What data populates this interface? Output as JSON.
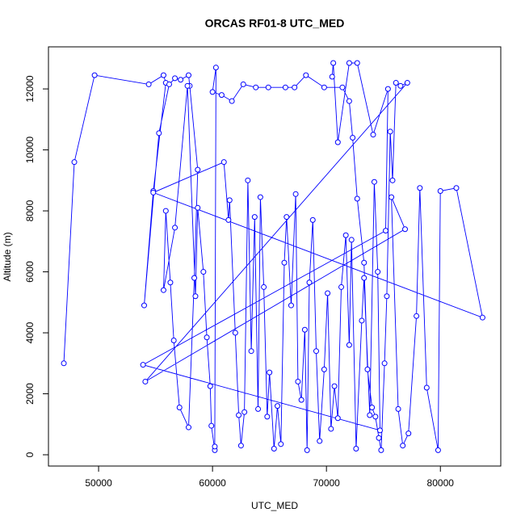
{
  "chart_data": {
    "type": "line",
    "title": "ORCAS RF01-8 UTC_MED",
    "x_label": "UTC_MED",
    "y_label": "Altitude (m)",
    "color": "#0000ff",
    "markers": true,
    "x": [
      46950,
      47870,
      49650,
      54400,
      55700,
      55900,
      54800,
      54000,
      55300,
      56200,
      56700,
      57200,
      57900,
      58000,
      58700,
      58400,
      57900,
      57100,
      56600,
      56300,
      55900,
      55700,
      56700,
      57800,
      58500,
      58700,
      59200,
      59500,
      59800,
      59900,
      60200,
      60200,
      60300,
      60000,
      60800,
      61700,
      62700,
      63800,
      64900,
      66400,
      67200,
      68200,
      69800,
      71400,
      72000,
      72300,
      72700,
      73300,
      73600,
      74000,
      74300,
      74600,
      74800,
      75100,
      75300,
      75600,
      75800,
      76100,
      76500,
      77100,
      54100,
      76900,
      75700,
      76300,
      76700,
      77200,
      77900,
      78200,
      78800,
      79800,
      80000,
      81400,
      83700,
      54800,
      61000,
      61400,
      61500,
      62000,
      62300,
      62500,
      62800,
      63100,
      63400,
      63700,
      64000,
      64200,
      64500,
      64800,
      65000,
      65400,
      65700,
      66000,
      66300,
      66500,
      66900,
      67300,
      67500,
      67800,
      68100,
      68300,
      68500,
      68800,
      69100,
      69400,
      69800,
      70100,
      70400,
      70700,
      71000,
      71300,
      71700,
      72000,
      72200,
      72600,
      73100,
      73300,
      73800,
      74200,
      74500,
      74700,
      53900,
      75200,
      75400,
      74100,
      72700,
      72000,
      71000,
      70600,
      70500
    ],
    "values": [
      3000,
      9600,
      12450,
      12150,
      12450,
      12200,
      8650,
      4900,
      10550,
      12150,
      12350,
      12300,
      12450,
      12100,
      9350,
      5800,
      900,
      1550,
      3750,
      5650,
      8000,
      5400,
      7450,
      12100,
      5200,
      8100,
      6000,
      3850,
      2250,
      950,
      150,
      270,
      12700,
      11900,
      11800,
      11600,
      12150,
      12050,
      12050,
      12050,
      12050,
      12450,
      12050,
      12050,
      11600,
      10400,
      8400,
      6300,
      2800,
      1550,
      1250,
      550,
      150,
      3000,
      5200,
      10600,
      9000,
      12200,
      12100,
      12200,
      2400,
      7400,
      8450,
      1500,
      300,
      700,
      4550,
      8750,
      2200,
      150,
      8650,
      8750,
      4500,
      8600,
      9600,
      7700,
      8350,
      4000,
      1300,
      300,
      1400,
      9000,
      3400,
      7800,
      1500,
      8450,
      5500,
      1250,
      2700,
      200,
      1600,
      350,
      6300,
      7800,
      4900,
      8550,
      2400,
      1800,
      4100,
      150,
      5650,
      7700,
      3400,
      450,
      2800,
      5300,
      850,
      2250,
      1200,
      5500,
      7200,
      3600,
      7050,
      200,
      4400,
      5800,
      1300,
      8950,
      6000,
      800,
      2950,
      7350,
      12000,
      10500,
      12850,
      12850,
      10250,
      12850,
      12400
    ],
    "xlim": [
      45600,
      85300
    ],
    "ylim": [
      -370,
      13380
    ],
    "xticks": [
      50000,
      60000,
      70000,
      80000
    ],
    "yticks": [
      0,
      2000,
      4000,
      6000,
      8000,
      10000,
      12000
    ]
  }
}
